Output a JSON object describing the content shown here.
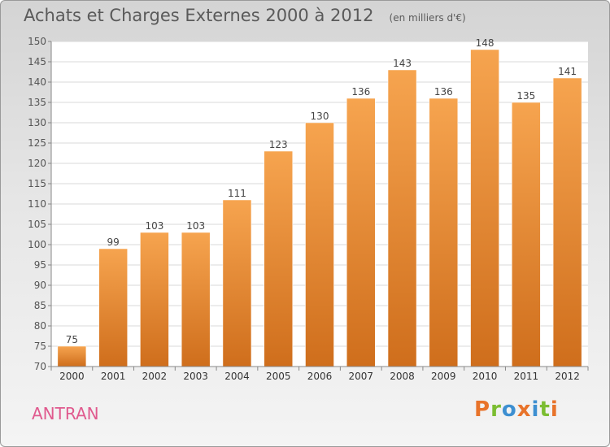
{
  "header": {
    "title": "Achats et Charges Externes 2000 à 2012",
    "subtitle": "(en milliers d'€)"
  },
  "footer": {
    "city": "ANTRAN",
    "brand": "Proxiti"
  },
  "colors": {
    "bar_light": "#f6a44f",
    "bar_dark": "#cf6e1c",
    "city": "#e05a8e",
    "brand_letters": [
      "#e8732a",
      "#7bbd31",
      "#3d8fd1",
      "#e8732a",
      "#3d8fd1",
      "#7bbd31",
      "#e8732a"
    ]
  },
  "chart_data": {
    "type": "bar",
    "title": "Achats et Charges Externes 2000 à 2012",
    "subtitle": "(en milliers d'€)",
    "categories": [
      "2000",
      "2001",
      "2002",
      "2003",
      "2004",
      "2005",
      "2006",
      "2007",
      "2008",
      "2009",
      "2010",
      "2011",
      "2012"
    ],
    "values": [
      75,
      99,
      103,
      103,
      111,
      123,
      130,
      136,
      143,
      136,
      148,
      135,
      141
    ],
    "ylim": [
      70,
      150
    ],
    "yticks": [
      70,
      75,
      80,
      85,
      90,
      95,
      100,
      105,
      110,
      115,
      120,
      125,
      130,
      135,
      140,
      145,
      150
    ],
    "grid": true,
    "legend": "none"
  }
}
